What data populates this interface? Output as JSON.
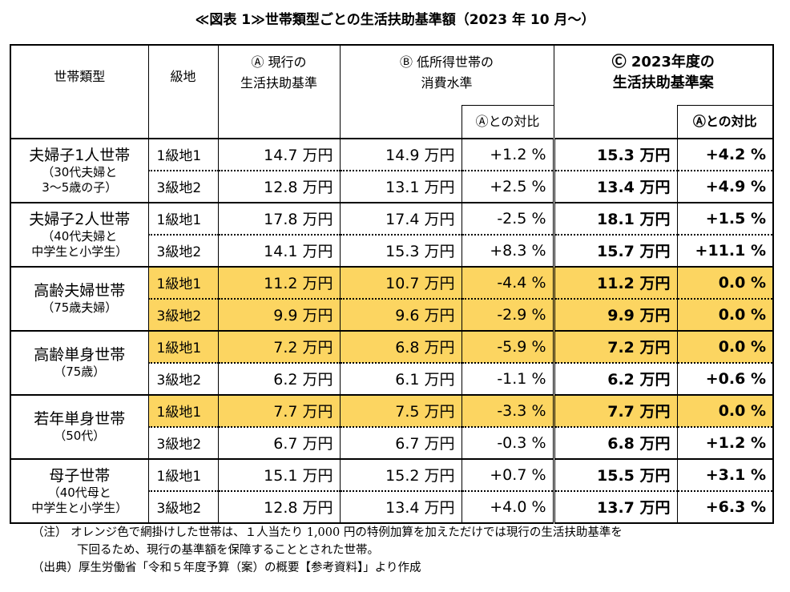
{
  "title": "≪図表 1≫世帯類型ごとの生活扶助基準額（2023 年 10 月～）",
  "header": {
    "type": "世帯類型",
    "grade": "級地",
    "a_line1": "Ⓐ 現行の",
    "a_line2": "生活扶助基準",
    "b_line1": "Ⓑ 低所得世帯の",
    "b_line2": "消費水準",
    "b_ratio": "Ⓐとの対比",
    "c_line1": "Ⓒ 2023年度の",
    "c_line2": "生活扶助基準案",
    "c_ratio": "Ⓐとの対比"
  },
  "groups": [
    {
      "name": "夫婦子1人世帯",
      "sub1": "（30代夫婦と",
      "sub2": "3～5歳の子）",
      "rows": [
        {
          "grade": "1級地1",
          "a": "14.7 万円",
          "b": "14.9 万円",
          "b_ratio": "+1.2 %",
          "c": "15.3 万円",
          "c_ratio": "+4.2 %"
        },
        {
          "grade": "3級地2",
          "a": "12.8 万円",
          "b": "13.1 万円",
          "b_ratio": "+2.5 %",
          "c": "13.4 万円",
          "c_ratio": "+4.9 %"
        }
      ]
    },
    {
      "name": "夫婦子2人世帯",
      "sub1": "（40代夫婦と",
      "sub2": "中学生と小学生）",
      "rows": [
        {
          "grade": "1級地1",
          "a": "17.8 万円",
          "b": "17.4 万円",
          "b_ratio": "-2.5 %",
          "c": "18.1 万円",
          "c_ratio": "+1.5 %"
        },
        {
          "grade": "3級地2",
          "a": "14.1 万円",
          "b": "15.3 万円",
          "b_ratio": "+8.3 %",
          "c": "15.7 万円",
          "c_ratio": "+11.1 %"
        }
      ]
    },
    {
      "name": "高齢夫婦世帯",
      "sub1": "（75歳夫婦）",
      "sub2": "",
      "rows": [
        {
          "grade": "1級地1",
          "a": "11.2 万円",
          "b": "10.7 万円",
          "b_ratio": "-4.4 %",
          "c": "11.2 万円",
          "c_ratio": "0.0 %"
        },
        {
          "grade": "3級地2",
          "a": "9.9 万円",
          "b": "9.6 万円",
          "b_ratio": "-2.9 %",
          "c": "9.9 万円",
          "c_ratio": "0.0 %"
        }
      ]
    },
    {
      "name": "高齢単身世帯",
      "sub1": "（75歳）",
      "sub2": "",
      "rows": [
        {
          "grade": "1級地1",
          "a": "7.2 万円",
          "b": "6.8 万円",
          "b_ratio": "-5.9 %",
          "c": "7.2 万円",
          "c_ratio": "0.0 %"
        },
        {
          "grade": "3級地2",
          "a": "6.2 万円",
          "b": "6.1 万円",
          "b_ratio": "-1.1 %",
          "c": "6.2 万円",
          "c_ratio": "+0.6 %"
        }
      ]
    },
    {
      "name": "若年単身世帯",
      "sub1": "（50代）",
      "sub2": "",
      "rows": [
        {
          "grade": "1級地1",
          "a": "7.7 万円",
          "b": "7.5 万円",
          "b_ratio": "-3.3 %",
          "c": "7.7 万円",
          "c_ratio": "0.0 %"
        },
        {
          "grade": "3級地2",
          "a": "6.7 万円",
          "b": "6.7 万円",
          "b_ratio": "-0.3 %",
          "c": "6.8 万円",
          "c_ratio": "+1.2 %"
        }
      ]
    },
    {
      "name": "母子世帯",
      "sub1": "（40代母と",
      "sub2": "中学生と小学生）",
      "rows": [
        {
          "grade": "1級地1",
          "a": "15.1 万円",
          "b": "15.2 万円",
          "b_ratio": "+0.7 %",
          "c": "15.5 万円",
          "c_ratio": "+3.1 %"
        },
        {
          "grade": "3級地2",
          "a": "12.8 万円",
          "b": "13.4 万円",
          "b_ratio": "+4.0 %",
          "c": "13.7 万円",
          "c_ratio": "+6.3 %"
        }
      ]
    }
  ],
  "highlight_color": "#fcd561",
  "notes": {
    "note1": "（注） オレンジ色で網掛けした世帯は、１人当たり 1,000 円の特例加算を加えただけでは現行の生活扶助基準を",
    "note2": "下回るため、現行の基準額を保障することとされた世帯。",
    "source": "（出典）厚生労働省「令和５年度予算（案）の概要【参考資料】」より作成"
  }
}
